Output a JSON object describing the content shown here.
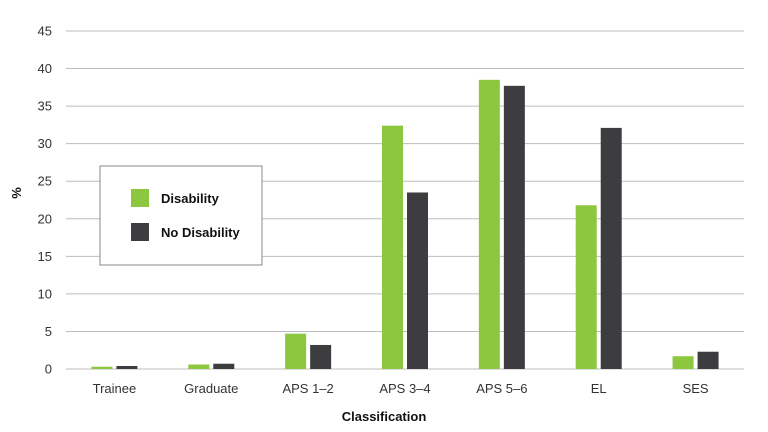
{
  "chart_data": {
    "type": "bar",
    "title": "",
    "xlabel": "Classification",
    "ylabel": "%",
    "ylim": [
      0,
      45
    ],
    "yticks": [
      0,
      5,
      10,
      15,
      20,
      25,
      30,
      35,
      40,
      45
    ],
    "grid": true,
    "legend_position": "left",
    "categories": [
      "Trainee",
      "Graduate",
      "APS 1–2",
      "APS 3–4",
      "APS 5–6",
      "EL",
      "SES"
    ],
    "series": [
      {
        "name": "Disability",
        "color": "#8dc63f",
        "values": [
          0.3,
          0.6,
          4.7,
          32.4,
          38.5,
          21.8,
          1.7
        ]
      },
      {
        "name": "No Disability",
        "color": "#3d3d3f",
        "values": [
          0.4,
          0.7,
          3.2,
          23.5,
          37.7,
          32.1,
          2.3
        ]
      }
    ]
  }
}
